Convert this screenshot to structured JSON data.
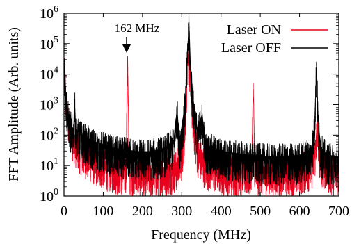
{
  "chart_data": {
    "type": "line",
    "title": "",
    "xlabel": "Frequency (MHz)",
    "ylabel": "FFT Amplitude (Arb. units)",
    "xlim": [
      0,
      700
    ],
    "ylim": [
      1,
      1000000
    ],
    "yscale": "log",
    "grid": false,
    "legend_position": "top-right",
    "x_ticks": [
      "0",
      "100",
      "200",
      "300",
      "400",
      "500",
      "600",
      "700"
    ],
    "y_ticks": [
      {
        "base": "10",
        "exp": "0"
      },
      {
        "base": "10",
        "exp": "1"
      },
      {
        "base": "10",
        "exp": "2"
      },
      {
        "base": "10",
        "exp": "3"
      },
      {
        "base": "10",
        "exp": "4"
      },
      {
        "base": "10",
        "exp": "5"
      },
      {
        "base": "10",
        "exp": "6"
      }
    ],
    "annotation": {
      "text": "162 MHz",
      "x": 162,
      "y": 40000
    },
    "series": [
      {
        "name": "Laser ON",
        "color": "#e8001c",
        "x": [
          0,
          2,
          4,
          8,
          14,
          20,
          30,
          40,
          60,
          80,
          100,
          120,
          140,
          158,
          162,
          166,
          180,
          200,
          230,
          260,
          285,
          300,
          308,
          314,
          318,
          322,
          330,
          340,
          360,
          400,
          440,
          478,
          482,
          486,
          520,
          560,
          600,
          630,
          640,
          645,
          650,
          660,
          680,
          700
        ],
        "values": [
          8000,
          20000,
          3000,
          600,
          250,
          150,
          80,
          50,
          30,
          20,
          15,
          12,
          10,
          10,
          40000,
          10,
          9,
          8,
          8,
          9,
          12,
          30,
          200,
          20000,
          40000,
          8000,
          300,
          40,
          15,
          10,
          9,
          9,
          5000,
          9,
          9,
          9,
          10,
          14,
          40,
          300,
          40,
          14,
          10,
          10
        ]
      },
      {
        "name": "Laser OFF",
        "color": "#000000",
        "x": [
          0,
          2,
          4,
          8,
          14,
          20,
          24,
          27,
          30,
          40,
          60,
          80,
          100,
          120,
          140,
          160,
          180,
          200,
          230,
          260,
          280,
          288,
          294,
          300,
          308,
          314,
          318,
          322,
          330,
          340,
          352,
          360,
          400,
          440,
          480,
          520,
          560,
          600,
          630,
          638,
          643,
          648,
          655,
          670,
          700
        ],
        "values": [
          10000,
          20000,
          3000,
          800,
          300,
          200,
          150,
          1500,
          160,
          120,
          80,
          60,
          50,
          40,
          35,
          32,
          30,
          28,
          30,
          40,
          70,
          800,
          60,
          200,
          1000,
          30000,
          800000,
          20000,
          1200,
          150,
          500,
          50,
          30,
          25,
          22,
          20,
          20,
          22,
          35,
          200,
          25000,
          200,
          40,
          22,
          20
        ]
      }
    ]
  }
}
